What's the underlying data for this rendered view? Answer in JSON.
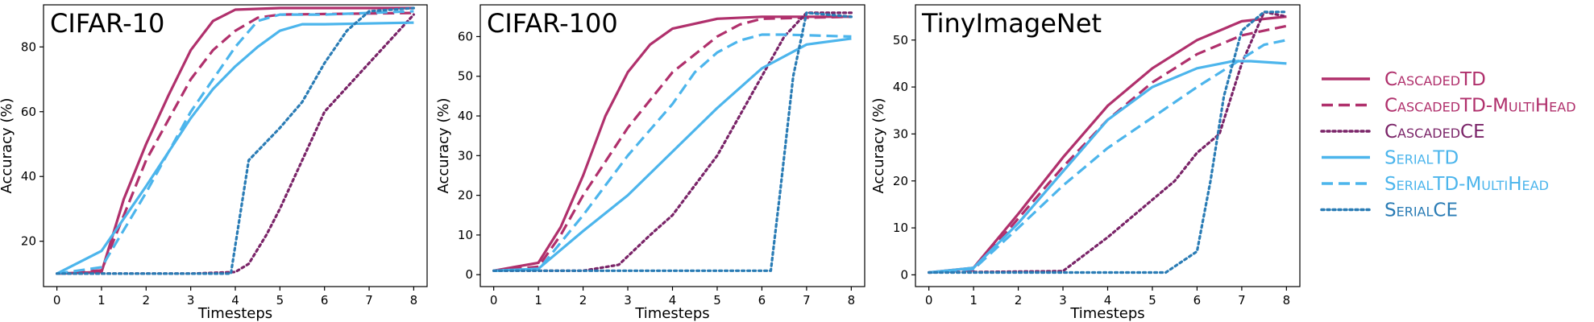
{
  "chart_data": [
    {
      "type": "line",
      "title": "CIFAR-10",
      "xlabel": "Timesteps",
      "ylabel": "Accuracy (%)",
      "xlim": [
        -0.3,
        8.3
      ],
      "ylim": [
        6,
        93
      ],
      "xticks": [
        0,
        1,
        2,
        3,
        4,
        5,
        6,
        7,
        8
      ],
      "yticks": [
        20,
        40,
        60,
        80
      ],
      "series": [
        {
          "key": "cascaded_td",
          "points": [
            [
              0,
              10
            ],
            [
              1,
              10.5
            ],
            [
              1.5,
              33
            ],
            [
              2,
              50
            ],
            [
              2.5,
              65
            ],
            [
              3,
              79
            ],
            [
              3.5,
              88
            ],
            [
              4,
              91.5
            ],
            [
              5,
              92
            ],
            [
              8,
              92
            ]
          ]
        },
        {
          "key": "cascaded_td_multihead",
          "points": [
            [
              0,
              10
            ],
            [
              1,
              11
            ],
            [
              2,
              45
            ],
            [
              3,
              70
            ],
            [
              3.5,
              79
            ],
            [
              4,
              85
            ],
            [
              4.5,
              89
            ],
            [
              5,
              90
            ],
            [
              8,
              90.5
            ]
          ]
        },
        {
          "key": "cascaded_ce",
          "points": [
            [
              0,
              10
            ],
            [
              3,
              10
            ],
            [
              4,
              10.5
            ],
            [
              4.3,
              13
            ],
            [
              4.7,
              22
            ],
            [
              5,
              30
            ],
            [
              5.5,
              45
            ],
            [
              6,
              60
            ],
            [
              7,
              75
            ],
            [
              8,
              90
            ]
          ]
        },
        {
          "key": "serial_td",
          "points": [
            [
              0,
              10
            ],
            [
              1,
              17
            ],
            [
              2,
              37
            ],
            [
              3,
              58
            ],
            [
              3.5,
              67
            ],
            [
              4,
              74
            ],
            [
              4.5,
              80
            ],
            [
              5,
              85
            ],
            [
              5.5,
              87
            ],
            [
              6,
              87
            ],
            [
              8,
              87.5
            ]
          ]
        },
        {
          "key": "serial_td_multihead",
          "points": [
            [
              0,
              10
            ],
            [
              1,
              12
            ],
            [
              2,
              35
            ],
            [
              3,
              60
            ],
            [
              4,
              80
            ],
            [
              4.5,
              88
            ],
            [
              5,
              90
            ],
            [
              6,
              90
            ],
            [
              8,
              91
            ]
          ]
        },
        {
          "key": "serial_ce",
          "points": [
            [
              0,
              10
            ],
            [
              3.9,
              10
            ],
            [
              4.3,
              45
            ],
            [
              5,
              55
            ],
            [
              5.5,
              63
            ],
            [
              6,
              75
            ],
            [
              6.5,
              85
            ],
            [
              7,
              91
            ],
            [
              8,
              92
            ]
          ]
        }
      ]
    },
    {
      "type": "line",
      "title": "CIFAR-100",
      "xlabel": "Timesteps",
      "ylabel": "Accuracy (%)",
      "xlim": [
        -0.3,
        8.3
      ],
      "ylim": [
        -3,
        68
      ],
      "xticks": [
        0,
        1,
        2,
        3,
        4,
        5,
        6,
        7,
        8
      ],
      "yticks": [
        0,
        10,
        20,
        30,
        40,
        50,
        60
      ],
      "series": [
        {
          "key": "cascaded_td",
          "points": [
            [
              0,
              1
            ],
            [
              1,
              3
            ],
            [
              1.5,
              12
            ],
            [
              2,
              25
            ],
            [
              2.5,
              40
            ],
            [
              3,
              51
            ],
            [
              3.5,
              58
            ],
            [
              4,
              62
            ],
            [
              5,
              64.5
            ],
            [
              6,
              65
            ],
            [
              8,
              65
            ]
          ]
        },
        {
          "key": "cascaded_td_multihead",
          "points": [
            [
              0,
              1
            ],
            [
              1,
              2
            ],
            [
              1.5,
              10
            ],
            [
              2,
              20
            ],
            [
              3,
              37
            ],
            [
              4,
              51
            ],
            [
              5,
              60
            ],
            [
              5.5,
              63
            ],
            [
              6,
              64.5
            ],
            [
              8,
              65
            ]
          ]
        },
        {
          "key": "cascaded_ce",
          "points": [
            [
              0,
              1
            ],
            [
              2,
              1
            ],
            [
              2.8,
              2.5
            ],
            [
              3.5,
              10
            ],
            [
              4,
              15
            ],
            [
              5,
              30
            ],
            [
              5.5,
              40
            ],
            [
              6,
              50
            ],
            [
              6.5,
              60
            ],
            [
              7,
              66
            ],
            [
              8,
              66
            ]
          ]
        },
        {
          "key": "serial_td",
          "points": [
            [
              0,
              1
            ],
            [
              1,
              1.5
            ],
            [
              2,
              11
            ],
            [
              3,
              20
            ],
            [
              4,
              31
            ],
            [
              5,
              42
            ],
            [
              6,
              52
            ],
            [
              7,
              58
            ],
            [
              8,
              59.5
            ]
          ]
        },
        {
          "key": "serial_td_multihead",
          "points": [
            [
              0,
              1
            ],
            [
              1,
              1.2
            ],
            [
              2,
              15
            ],
            [
              3,
              30
            ],
            [
              4,
              43
            ],
            [
              4.5,
              51
            ],
            [
              5,
              56
            ],
            [
              5.5,
              59
            ],
            [
              6,
              60.5
            ],
            [
              6.5,
              60.5
            ],
            [
              8,
              60
            ]
          ]
        },
        {
          "key": "serial_ce",
          "points": [
            [
              0,
              1
            ],
            [
              6.2,
              1
            ],
            [
              6.4,
              20
            ],
            [
              6.7,
              50
            ],
            [
              7,
              66
            ],
            [
              8,
              65
            ]
          ]
        }
      ]
    },
    {
      "type": "line",
      "title": "TinyImageNet",
      "xlabel": "Timesteps",
      "ylabel": "Accuracy (%)",
      "xlim": [
        -0.3,
        8.3
      ],
      "ylim": [
        -2.5,
        57.5
      ],
      "xticks": [
        0,
        1,
        2,
        3,
        4,
        5,
        6,
        7,
        8
      ],
      "yticks": [
        0,
        10,
        20,
        30,
        40,
        50
      ],
      "series": [
        {
          "key": "cascaded_td",
          "points": [
            [
              0,
              0.5
            ],
            [
              1,
              1.5
            ],
            [
              2,
              13
            ],
            [
              3,
              25
            ],
            [
              4,
              36
            ],
            [
              5,
              44
            ],
            [
              6,
              50
            ],
            [
              7,
              54
            ],
            [
              8,
              55
            ]
          ]
        },
        {
          "key": "cascaded_td_multihead",
          "points": [
            [
              0,
              0.5
            ],
            [
              1,
              1
            ],
            [
              2,
              12
            ],
            [
              3,
              23
            ],
            [
              4,
              33
            ],
            [
              5,
              41
            ],
            [
              6,
              47
            ],
            [
              7,
              51
            ],
            [
              8,
              53
            ]
          ]
        },
        {
          "key": "cascaded_ce",
          "points": [
            [
              0,
              0.5
            ],
            [
              3,
              0.8
            ],
            [
              4,
              8
            ],
            [
              5,
              16
            ],
            [
              5.5,
              20
            ],
            [
              6,
              26
            ],
            [
              6.5,
              30
            ],
            [
              7,
              45
            ],
            [
              7.5,
              56
            ],
            [
              8,
              55
            ]
          ]
        },
        {
          "key": "serial_td",
          "points": [
            [
              0,
              0.5
            ],
            [
              1,
              1.5
            ],
            [
              2,
              11
            ],
            [
              3,
              22
            ],
            [
              4,
              33
            ],
            [
              5,
              40
            ],
            [
              6,
              44
            ],
            [
              6.8,
              45.5
            ],
            [
              7.2,
              45.5
            ],
            [
              8,
              45
            ]
          ]
        },
        {
          "key": "serial_td_multihead",
          "points": [
            [
              0,
              0.5
            ],
            [
              1,
              1.2
            ],
            [
              2,
              10
            ],
            [
              3,
              19
            ],
            [
              4,
              27
            ],
            [
              5,
              33.5
            ],
            [
              6,
              40
            ],
            [
              7,
              46
            ],
            [
              7.5,
              49
            ],
            [
              8,
              50
            ]
          ]
        },
        {
          "key": "serial_ce",
          "points": [
            [
              0,
              0.5
            ],
            [
              5.3,
              0.5
            ],
            [
              6,
              5
            ],
            [
              6.3,
              20
            ],
            [
              6.6,
              38
            ],
            [
              7,
              52
            ],
            [
              7.5,
              56
            ],
            [
              8,
              56
            ]
          ]
        }
      ]
    }
  ],
  "legend": [
    {
      "key": "cascaded_td",
      "label": "CascadedTD",
      "color": "#b0306c",
      "dash": "solid"
    },
    {
      "key": "cascaded_td_multihead",
      "label": "CascadedTD-MultiHead",
      "color": "#b0306c",
      "dash": "dashed"
    },
    {
      "key": "cascaded_ce",
      "label": "CascadedCE",
      "color": "#7a2468",
      "dash": "dotted"
    },
    {
      "key": "serial_td",
      "label": "SerialTD",
      "color": "#4cb5ec",
      "dash": "solid"
    },
    {
      "key": "serial_td_multihead",
      "label": "SerialTD-MultiHead",
      "color": "#4cb5ec",
      "dash": "dashed"
    },
    {
      "key": "serial_ce",
      "label": "SerialCE",
      "color": "#2a7cb5",
      "dash": "dotted"
    }
  ]
}
